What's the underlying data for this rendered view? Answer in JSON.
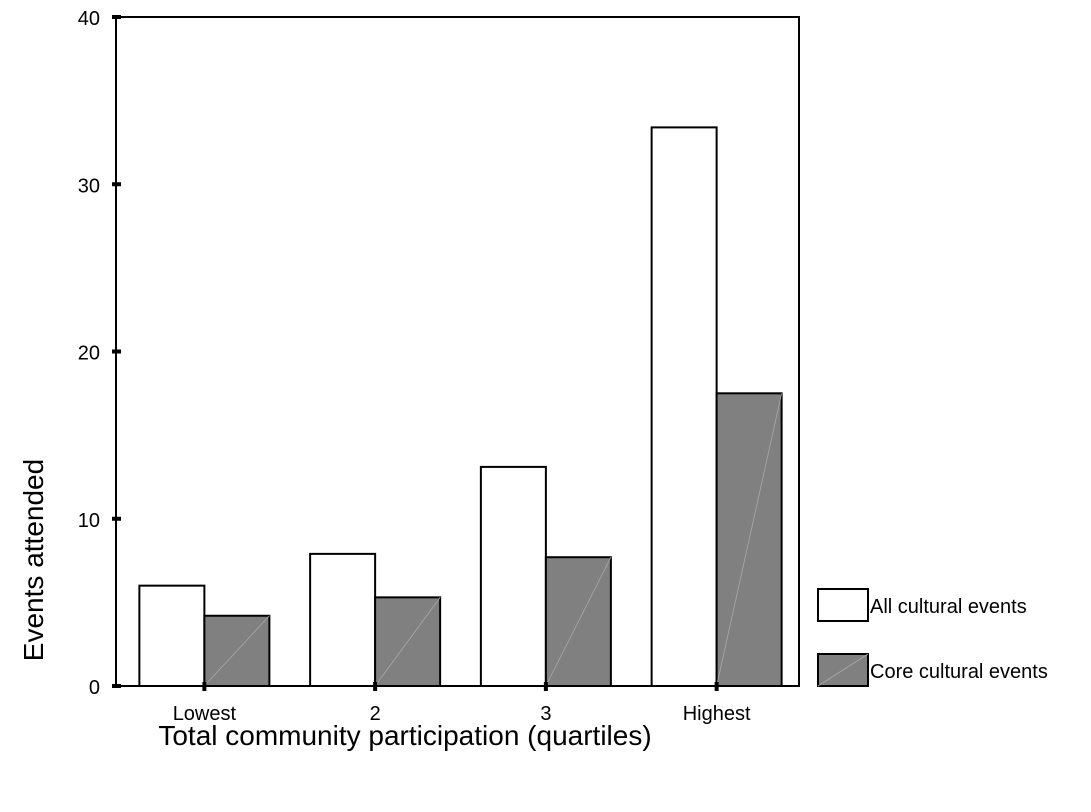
{
  "chart_data": {
    "type": "bar",
    "xlabel": "Total community participation (quartiles)",
    "ylabel": "Events attended",
    "categories": [
      "Lowest",
      "2",
      "3",
      "Highest"
    ],
    "ylim": [
      0,
      40
    ],
    "yticks": [
      0,
      10,
      20,
      30,
      40
    ],
    "grid": false,
    "legend_position": "right",
    "series": [
      {
        "name": "All cultural events",
        "values": [
          6.0,
          7.9,
          13.1,
          33.4
        ],
        "color": "#ffffff"
      },
      {
        "name": "Core cultural events",
        "values": [
          4.2,
          5.3,
          7.7,
          17.5
        ],
        "color": "#808080"
      }
    ]
  }
}
